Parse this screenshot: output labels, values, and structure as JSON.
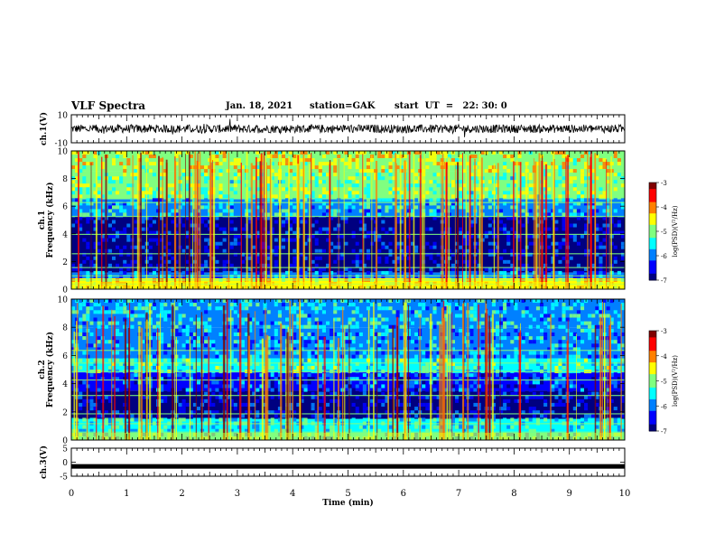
{
  "header": {
    "title": "VLF Spectra",
    "date": "Jan. 18, 2021",
    "station": "station=GAK",
    "start": "start  UT  =   22: 30: 0"
  },
  "chart_data": [
    {
      "type": "line",
      "ylabel": "ch.1(V)",
      "ylim": [
        -10,
        10
      ],
      "yticks": [
        "10",
        "-10"
      ],
      "xlim": [
        0,
        10
      ],
      "baseline": 0,
      "color": "#000000"
    },
    {
      "type": "heatmap",
      "ylabel": "ch.1 Frequency (kHz)",
      "ylim": [
        0,
        10
      ],
      "yticks": [
        "10",
        "8",
        "6",
        "4",
        "2",
        "0"
      ],
      "xlim": [
        0,
        10
      ],
      "colorbar": {
        "label": "log(PSD)(V²/Hz)",
        "range": [
          -7,
          -3
        ],
        "ticks": [
          "-3",
          "-4",
          "-5",
          "-6",
          "-7"
        ]
      }
    },
    {
      "type": "heatmap",
      "ylabel": "ch.2 Frequency (kHz)",
      "ylim": [
        0,
        10
      ],
      "yticks": [
        "10",
        "8",
        "6",
        "4",
        "2",
        "0"
      ],
      "xlim": [
        0,
        10
      ],
      "colorbar": {
        "label": "log(PSD)(V²/Hz)",
        "range": [
          -7,
          -3
        ],
        "ticks": [
          "-3",
          "-4",
          "-5",
          "-6",
          "-7"
        ]
      }
    },
    {
      "type": "line",
      "ylabel": "ch.3(V)",
      "ylim": [
        -5,
        5
      ],
      "yticks": [
        "5",
        "0",
        "-5"
      ],
      "xlim": [
        0,
        10
      ],
      "baseline": -1.5,
      "color": "#000000"
    }
  ],
  "xaxis": {
    "label": "Time (min)",
    "ticks": [
      "0",
      "1",
      "2",
      "3",
      "4",
      "5",
      "6",
      "7",
      "8",
      "9",
      "10"
    ]
  },
  "colors": {
    "jet": [
      "#000080",
      "#0000ff",
      "#0080ff",
      "#00ffff",
      "#80ff80",
      "#ffff00",
      "#ff8000",
      "#ff0000",
      "#800000"
    ]
  }
}
